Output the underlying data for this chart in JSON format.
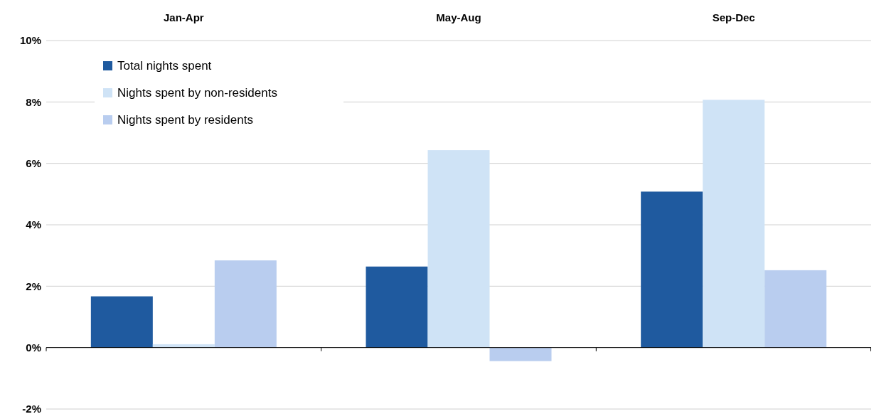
{
  "chart_data": {
    "type": "bar",
    "categories": [
      "Jan-Apr",
      "May-Aug",
      "Sep-Dec"
    ],
    "series": [
      {
        "name": "Total nights spent",
        "color": "#1f5a9f",
        "values": [
          1.67,
          2.64,
          5.08
        ]
      },
      {
        "name": "Nights spent by non-residents",
        "color": "#cfe3f6",
        "values": [
          0.11,
          6.43,
          8.07
        ]
      },
      {
        "name": "Nights spent by residents",
        "color": "#b9cdef",
        "values": [
          2.84,
          -0.44,
          2.52
        ]
      }
    ],
    "ylim": [
      -2,
      10
    ],
    "yticks": [
      {
        "value": -2,
        "label": "-2%"
      },
      {
        "value": 0,
        "label": "0%"
      },
      {
        "value": 2,
        "label": "2%"
      },
      {
        "value": 4,
        "label": "4%"
      },
      {
        "value": 6,
        "label": "6%"
      },
      {
        "value": 8,
        "label": "8%"
      },
      {
        "value": 10,
        "label": "10%"
      }
    ],
    "grid": "y",
    "legend": "top left"
  }
}
